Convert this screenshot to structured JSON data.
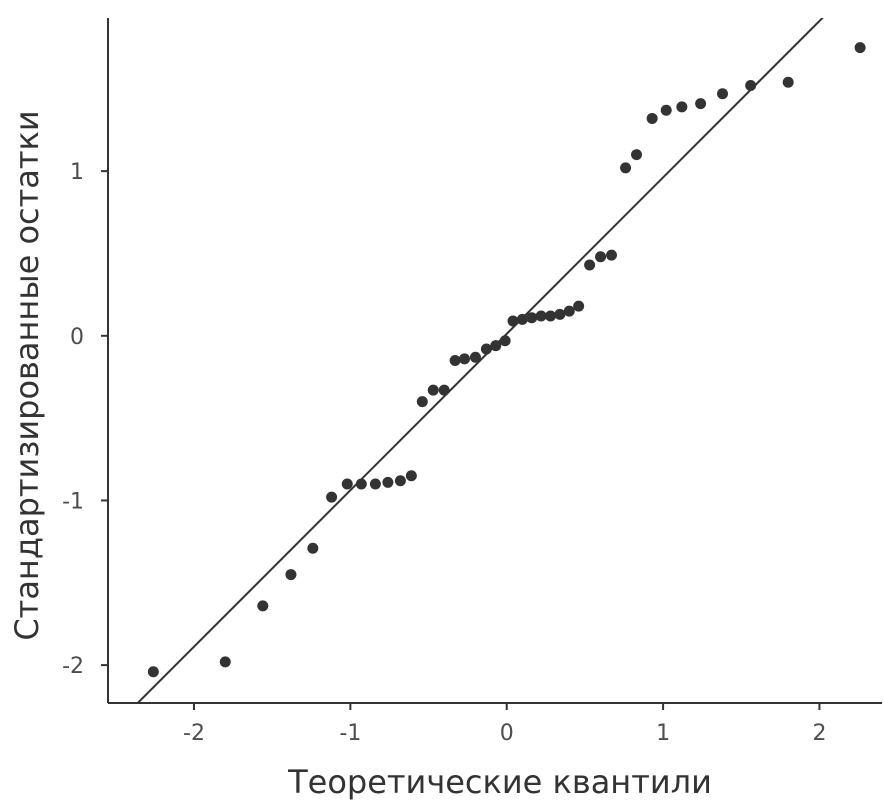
{
  "chart_data": {
    "type": "scatter",
    "title": "",
    "xlabel": "Теоретические квантили",
    "ylabel": "Стандартизированные остатки",
    "xlim": [
      -2.55,
      2.4
    ],
    "ylim": [
      -2.23,
      1.93
    ],
    "x_ticks": [
      -2,
      -1,
      0,
      1,
      2
    ],
    "x_tick_labels": [
      "-2",
      "-1",
      "0",
      "1",
      "2"
    ],
    "y_ticks": [
      -2,
      -1,
      0,
      1
    ],
    "y_tick_labels": [
      "-2",
      "-1",
      "0",
      "1"
    ],
    "grid": false,
    "colors": {
      "points": "#333333",
      "line": "#333333",
      "axis": "#333333",
      "tick_text": "#4d4d4d"
    },
    "reference_line": {
      "intercept": 0.012,
      "slope": 0.95
    },
    "points": [
      {
        "x": -2.26,
        "y": -2.04
      },
      {
        "x": -1.8,
        "y": -1.98
      },
      {
        "x": -1.56,
        "y": -1.64
      },
      {
        "x": -1.38,
        "y": -1.45
      },
      {
        "x": -1.24,
        "y": -1.29
      },
      {
        "x": -1.12,
        "y": -0.98
      },
      {
        "x": -1.02,
        "y": -0.9
      },
      {
        "x": -0.93,
        "y": -0.9
      },
      {
        "x": -0.84,
        "y": -0.9
      },
      {
        "x": -0.76,
        "y": -0.89
      },
      {
        "x": -0.68,
        "y": -0.88
      },
      {
        "x": -0.61,
        "y": -0.85
      },
      {
        "x": -0.54,
        "y": -0.4
      },
      {
        "x": -0.47,
        "y": -0.33
      },
      {
        "x": -0.4,
        "y": -0.33
      },
      {
        "x": -0.33,
        "y": -0.15
      },
      {
        "x": -0.27,
        "y": -0.14
      },
      {
        "x": -0.2,
        "y": -0.13
      },
      {
        "x": -0.13,
        "y": -0.08
      },
      {
        "x": -0.07,
        "y": -0.06
      },
      {
        "x": -0.01,
        "y": -0.03
      },
      {
        "x": 0.04,
        "y": 0.09
      },
      {
        "x": 0.1,
        "y": 0.1
      },
      {
        "x": 0.16,
        "y": 0.11
      },
      {
        "x": 0.22,
        "y": 0.12
      },
      {
        "x": 0.28,
        "y": 0.12
      },
      {
        "x": 0.34,
        "y": 0.13
      },
      {
        "x": 0.4,
        "y": 0.15
      },
      {
        "x": 0.46,
        "y": 0.18
      },
      {
        "x": 0.53,
        "y": 0.43
      },
      {
        "x": 0.6,
        "y": 0.48
      },
      {
        "x": 0.67,
        "y": 0.49
      },
      {
        "x": 0.76,
        "y": 1.02
      },
      {
        "x": 0.83,
        "y": 1.1
      },
      {
        "x": 0.93,
        "y": 1.32
      },
      {
        "x": 1.02,
        "y": 1.37
      },
      {
        "x": 1.12,
        "y": 1.39
      },
      {
        "x": 1.24,
        "y": 1.41
      },
      {
        "x": 1.38,
        "y": 1.47
      },
      {
        "x": 1.56,
        "y": 1.52
      },
      {
        "x": 1.8,
        "y": 1.54
      },
      {
        "x": 2.26,
        "y": 1.75
      }
    ]
  }
}
